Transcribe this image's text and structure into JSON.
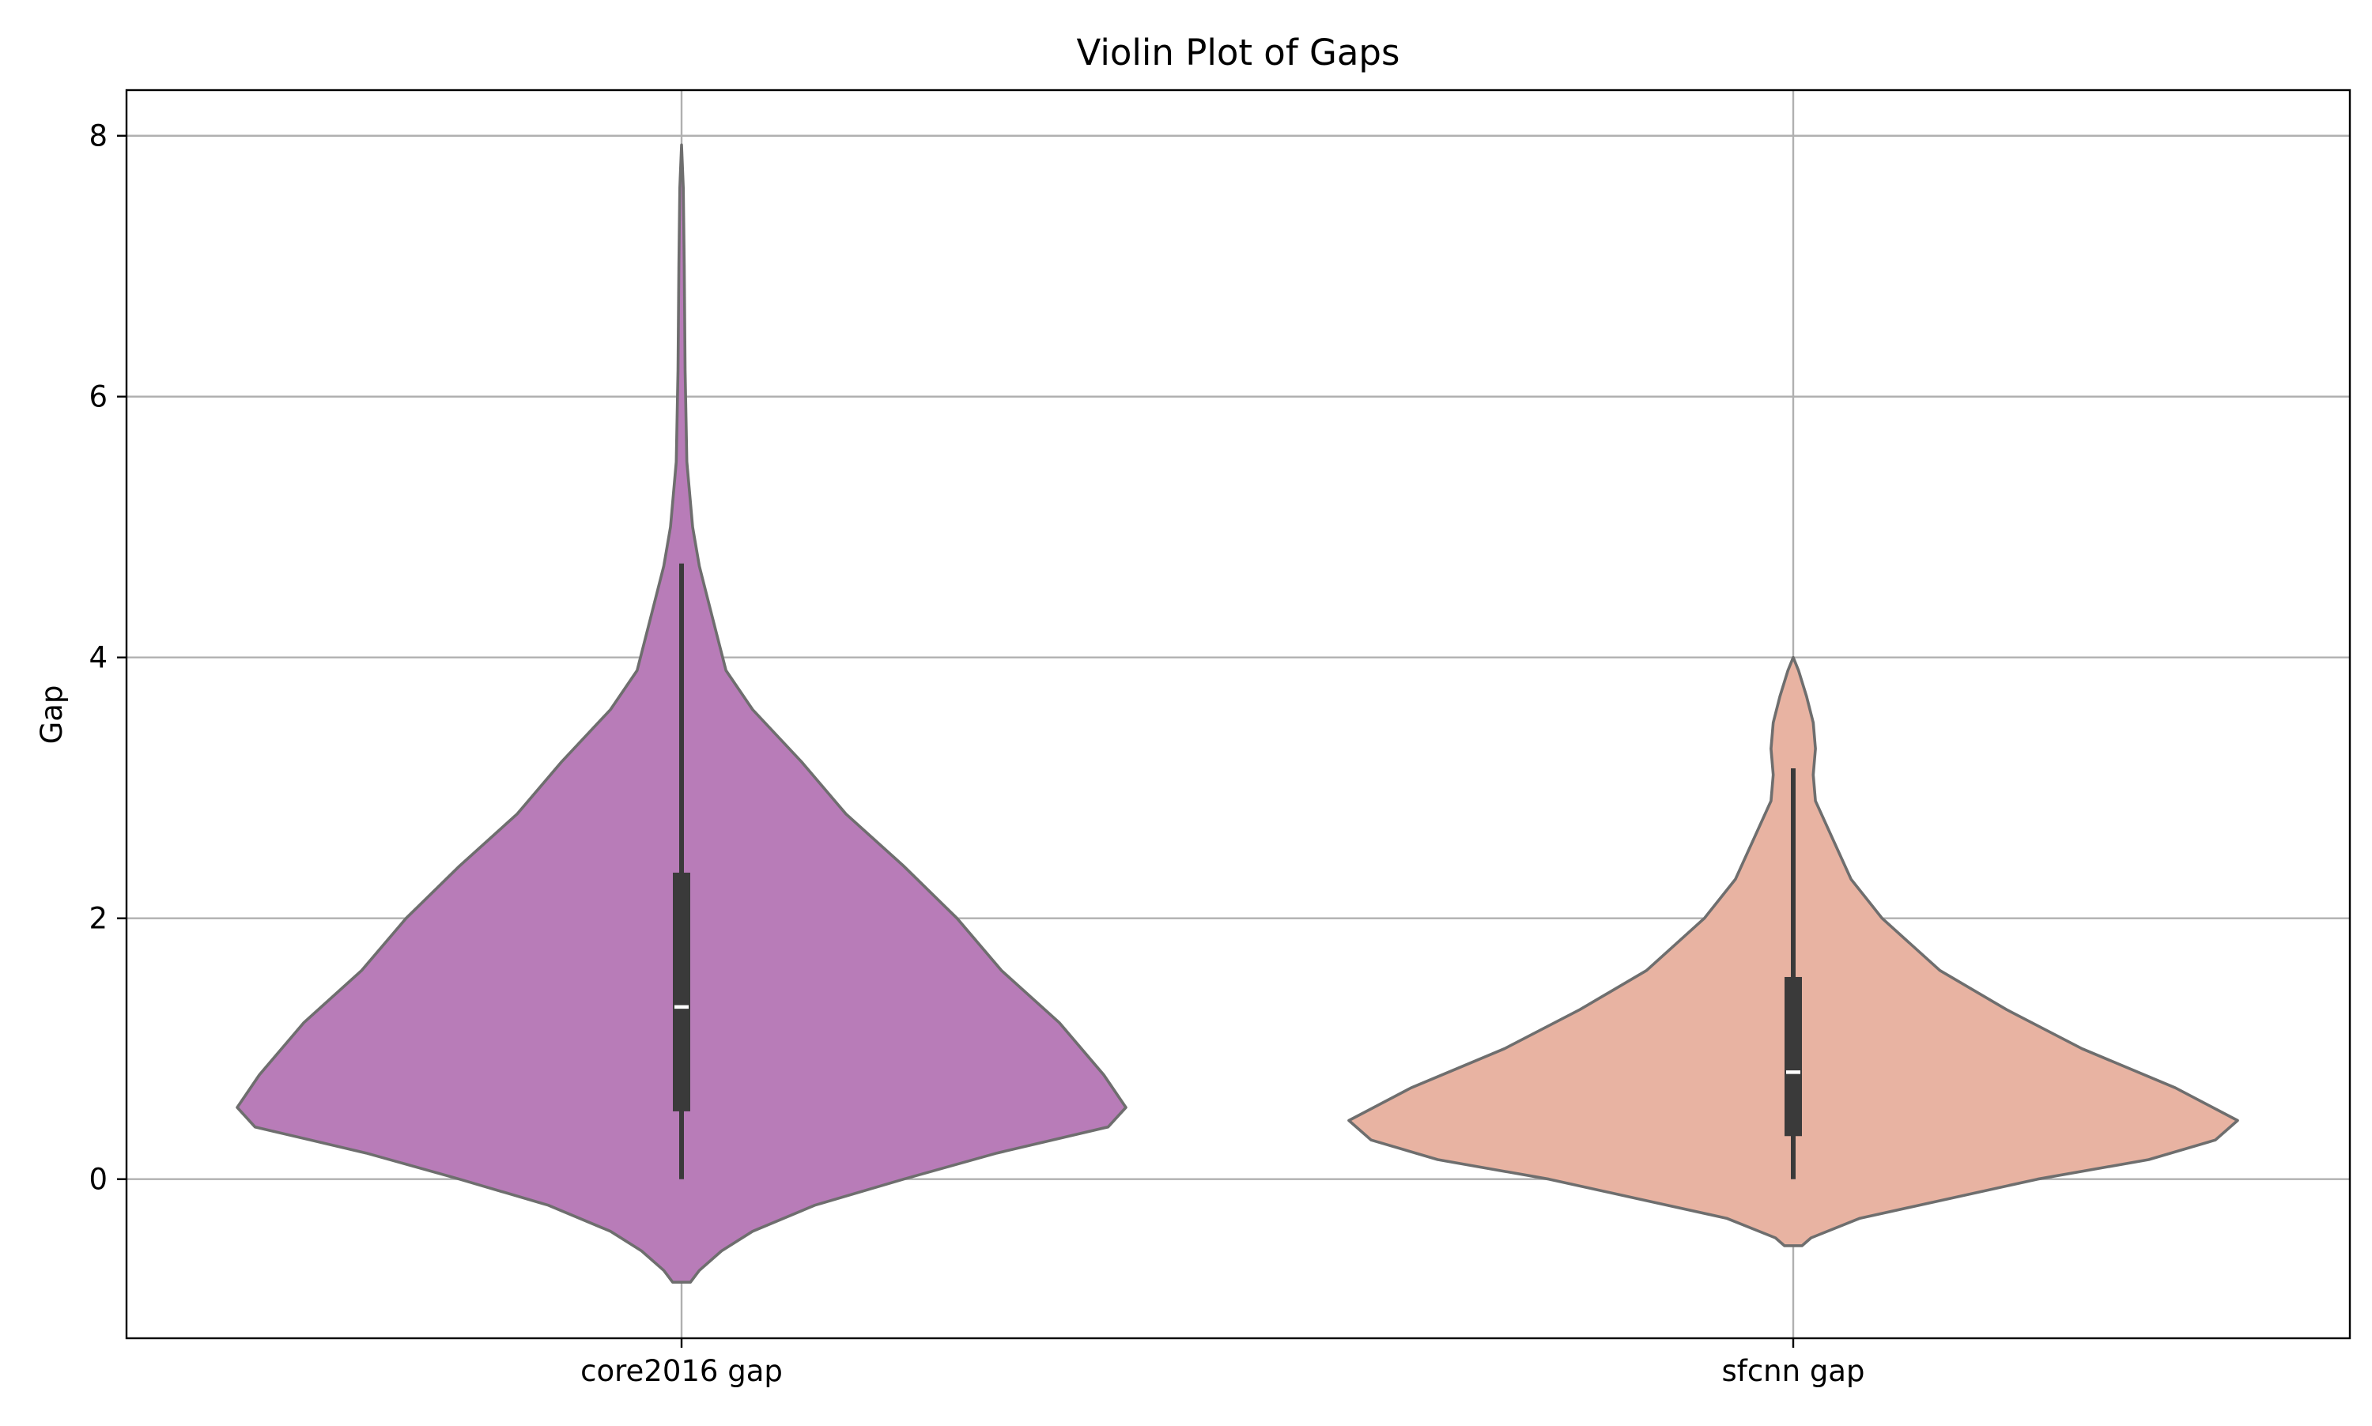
{
  "chart_data": {
    "type": "violin",
    "title": "Violin Plot of Gaps",
    "xlabel": "",
    "ylabel": "Gap",
    "ylim": [
      -1.22,
      8.35
    ],
    "yticks": [
      0,
      2,
      4,
      6,
      8
    ],
    "grid": true,
    "categories": [
      "core2016 gap",
      "sfcnn gap"
    ],
    "colors": [
      "#b87cb8",
      "#e8b3a2"
    ],
    "outline_color": "#6e6e6e",
    "box_color": "#3a3a3a",
    "median_color": "#ffffff",
    "series": [
      {
        "category": "core2016 gap",
        "whisker_low": 0.0,
        "q1": 0.52,
        "median": 1.32,
        "q3": 2.35,
        "whisker_high": 4.72,
        "density": [
          [
            -0.79,
            0.02
          ],
          [
            -0.7,
            0.04
          ],
          [
            -0.55,
            0.09
          ],
          [
            -0.4,
            0.16
          ],
          [
            -0.2,
            0.3
          ],
          [
            0.0,
            0.5
          ],
          [
            0.2,
            0.71
          ],
          [
            0.4,
            0.96
          ],
          [
            0.55,
            1.0
          ],
          [
            0.8,
            0.95
          ],
          [
            1.2,
            0.85
          ],
          [
            1.6,
            0.72
          ],
          [
            2.0,
            0.62
          ],
          [
            2.4,
            0.5
          ],
          [
            2.8,
            0.37
          ],
          [
            3.2,
            0.27
          ],
          [
            3.6,
            0.16
          ],
          [
            3.9,
            0.1
          ],
          [
            4.3,
            0.07
          ],
          [
            4.7,
            0.04
          ],
          [
            5.0,
            0.025
          ],
          [
            5.5,
            0.012
          ],
          [
            6.2,
            0.008
          ],
          [
            7.0,
            0.006
          ],
          [
            7.6,
            0.004
          ],
          [
            7.93,
            0.0
          ]
        ]
      },
      {
        "category": "sfcnn gap",
        "whisker_low": 0.0,
        "q1": 0.33,
        "median": 0.82,
        "q3": 1.55,
        "whisker_high": 3.15,
        "density": [
          [
            -0.51,
            0.02
          ],
          [
            -0.45,
            0.04
          ],
          [
            -0.3,
            0.15
          ],
          [
            -0.15,
            0.35
          ],
          [
            0.0,
            0.55
          ],
          [
            0.15,
            0.8
          ],
          [
            0.3,
            0.95
          ],
          [
            0.45,
            1.0
          ],
          [
            0.7,
            0.86
          ],
          [
            1.0,
            0.65
          ],
          [
            1.3,
            0.48
          ],
          [
            1.6,
            0.33
          ],
          [
            2.0,
            0.2
          ],
          [
            2.3,
            0.13
          ],
          [
            2.6,
            0.09
          ],
          [
            2.9,
            0.05
          ],
          [
            3.1,
            0.045
          ],
          [
            3.3,
            0.05
          ],
          [
            3.5,
            0.045
          ],
          [
            3.7,
            0.03
          ],
          [
            3.9,
            0.012
          ],
          [
            4.0,
            0.0
          ]
        ]
      }
    ]
  }
}
